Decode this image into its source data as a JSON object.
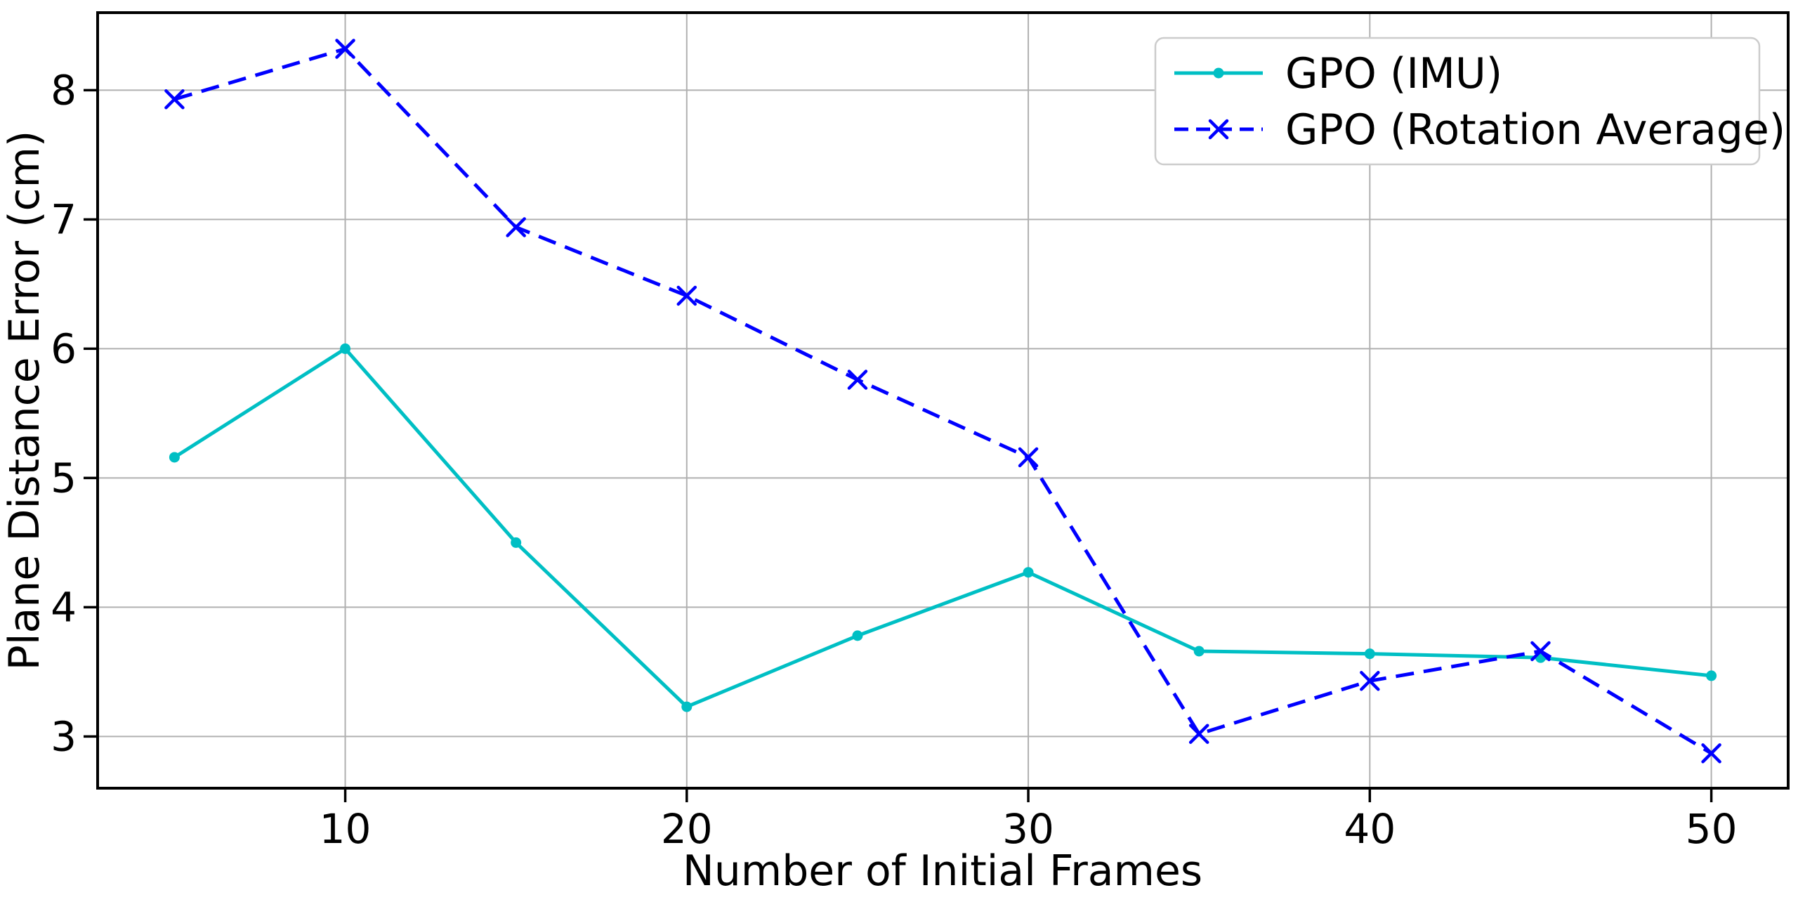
{
  "figure": {
    "background": "#ffffff"
  },
  "chart_data": {
    "type": "line",
    "title": "",
    "xlabel": "Number of Initial Frames",
    "ylabel": "Plane Distance Error (cm)",
    "x": [
      5,
      10,
      15,
      20,
      25,
      30,
      35,
      40,
      45,
      50
    ],
    "series": [
      {
        "name": "GPO (IMU)",
        "color": "#00bfc4",
        "line_style": "solid",
        "marker": "dot",
        "values": [
          5.16,
          6.0,
          4.5,
          3.23,
          3.78,
          4.27,
          3.66,
          3.64,
          3.61,
          3.47
        ]
      },
      {
        "name": "GPO (Rotation Average)",
        "color": "#0000ff",
        "line_style": "dashed",
        "marker": "x",
        "values": [
          7.93,
          8.32,
          6.94,
          6.41,
          5.76,
          5.16,
          3.02,
          3.43,
          3.66,
          2.87
        ]
      }
    ],
    "xticks": [
      10,
      20,
      30,
      40,
      50
    ],
    "yticks": [
      3,
      4,
      5,
      6,
      7,
      8
    ],
    "xlim": [
      2.75,
      52.25
    ],
    "ylim": [
      2.6,
      8.6
    ],
    "grid": true,
    "grid_color": "#b0b0b0",
    "legend_position": "upper right",
    "legend_items": [
      "GPO (IMU)",
      "GPO (Rotation Average)"
    ]
  }
}
